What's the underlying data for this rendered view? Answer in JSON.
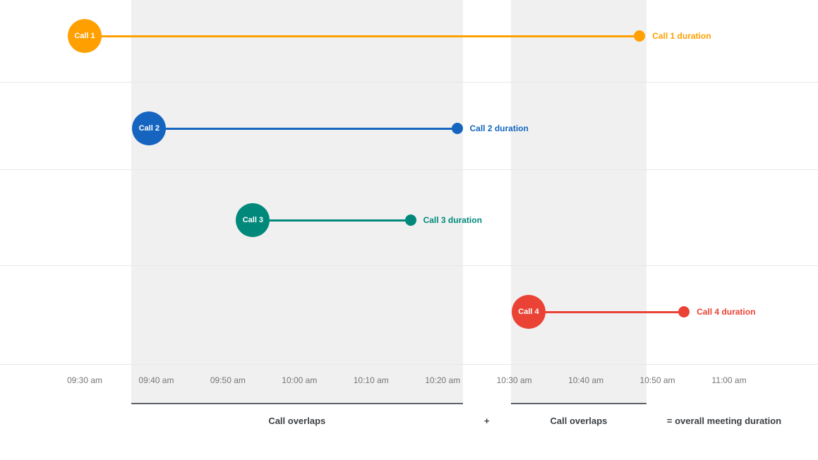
{
  "chart_data": {
    "type": "timeline",
    "x_axis": {
      "tick_labels": [
        "09:30 am",
        "09:40 am",
        "09:50 am",
        "10:00 am",
        "10:10 am",
        "10:20 am",
        "10:30 am",
        "10:40 am",
        "10:50 am",
        "11:00 am"
      ],
      "tick_interval_minutes": 10,
      "range_minutes": [
        0,
        90
      ],
      "grid": true
    },
    "calls": [
      {
        "name": "Call 1",
        "color": "#FFA000",
        "start_min": 0,
        "end_min": 77.5,
        "start_time": "09:30 am",
        "end_time": "10:47 am",
        "duration_label": "Call 1 duration"
      },
      {
        "name": "Call 2",
        "color": "#1565C0",
        "start_min": 9,
        "end_min": 52,
        "start_time": "09:39 am",
        "end_time": "10:22 am",
        "duration_label": "Call 2 duration"
      },
      {
        "name": "Call 3",
        "color": "#00897B",
        "start_min": 23.5,
        "end_min": 45.5,
        "start_time": "09:53 am",
        "end_time": "10:15 am",
        "duration_label": "Call 3 duration"
      },
      {
        "name": "Call 4",
        "color": "#EA4335",
        "start_min": 62,
        "end_min": 83.7,
        "start_time": "10:32 am",
        "end_time": "10:54 am",
        "duration_label": "Call 4 duration"
      }
    ],
    "overlap_regions": [
      {
        "start_min": 6.5,
        "end_min": 52.8,
        "label": "Call overlaps"
      },
      {
        "start_min": 59.5,
        "end_min": 78.5,
        "label": "Call overlaps"
      }
    ],
    "annotations": {
      "plus": "+",
      "equals": "= overall meeting duration"
    },
    "colors": {
      "band": "#f0f0f0",
      "gridline": "#e7e7e7",
      "tick_text": "#757575",
      "bottom_text": "#3c4043",
      "underline": "#5f6368"
    }
  }
}
